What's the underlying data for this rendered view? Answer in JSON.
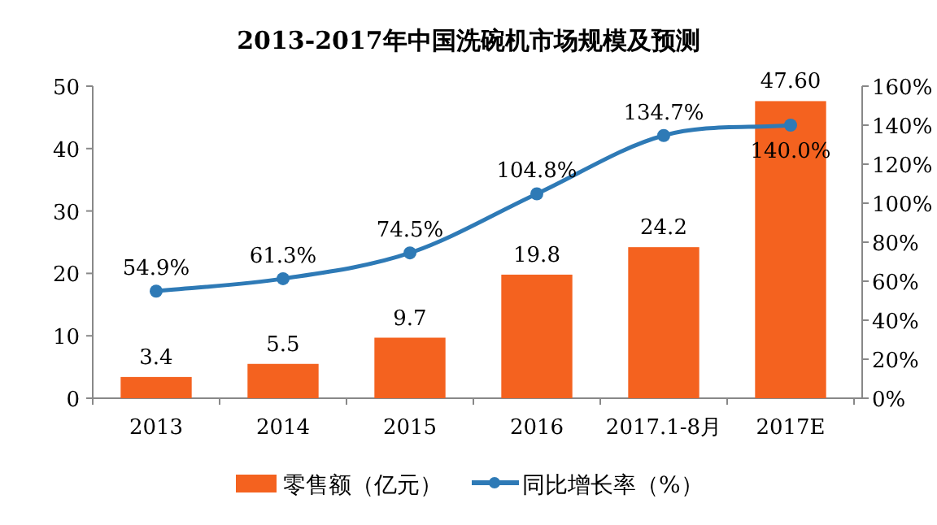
{
  "chart_data": {
    "type": "bar",
    "title": "2013-2017年中国洗碗机市场规模及预测",
    "categories": [
      "2013",
      "2014",
      "2015",
      "2016",
      "2017.1-8月",
      "2017E"
    ],
    "series": [
      {
        "name": "零售额（亿元）",
        "color": "#f4621f",
        "values": [
          3.4,
          5.5,
          9.7,
          19.8,
          24.2,
          47.6
        ],
        "value_labels": [
          "3.4",
          "5.5",
          "9.7",
          "19.8",
          "24.2",
          "47.60"
        ]
      },
      {
        "name": "同比增长率（%）",
        "type": "line",
        "axis": "y2",
        "color": "#2e7ab6",
        "marker": "circle",
        "values": [
          54.9,
          61.3,
          74.5,
          104.8,
          134.7,
          140.0
        ],
        "value_labels": [
          "54.9%",
          "61.3%",
          "74.5%",
          "104.8%",
          "134.7%",
          "140.0%"
        ]
      }
    ],
    "ylim": [
      0,
      50
    ],
    "yticks": [
      0,
      10,
      20,
      30,
      40,
      50
    ],
    "y2lim": [
      0,
      160
    ],
    "y2ticks": [
      {
        "value": 0,
        "label": "0%"
      },
      {
        "value": 20,
        "label": "20%"
      },
      {
        "value": 40,
        "label": "40%"
      },
      {
        "value": 60,
        "label": "60%"
      },
      {
        "value": 80,
        "label": "80%"
      },
      {
        "value": 100,
        "label": "100%"
      },
      {
        "value": 120,
        "label": "120%"
      },
      {
        "value": 140,
        "label": "140%"
      },
      {
        "value": 160,
        "label": "160%"
      }
    ],
    "grid": false,
    "legend": "bottom"
  }
}
